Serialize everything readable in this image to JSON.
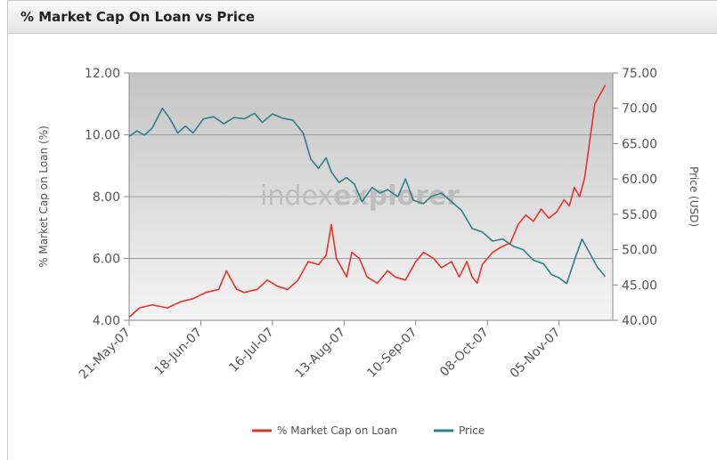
{
  "panel": {
    "title": "% Market Cap On Loan vs Price"
  },
  "watermark": {
    "text_light": "index",
    "text_bold": "explorer"
  },
  "colors": {
    "loan": "#e8322b",
    "price": "#2f7f86",
    "grid": "#9a9a9a",
    "axis": "#8a8a8a"
  },
  "chart_data": {
    "type": "line",
    "title": "% Market Cap On Loan vs Price",
    "ylabel_left": "% Market Cap on Loan (%)",
    "ylabel_right": "Price (USD)",
    "ylim_left": [
      4,
      12
    ],
    "ylim_right": [
      40,
      75
    ],
    "xlim": [
      "2007-05-21",
      "2007-11-26"
    ],
    "yticks_left": [
      "4.00",
      "6.00",
      "8.00",
      "10.00",
      "12.00"
    ],
    "yticks_right": [
      "40.00",
      "45.00",
      "50.00",
      "55.00",
      "60.00",
      "65.00",
      "70.00",
      "75.00"
    ],
    "x_ticks": [
      {
        "date": "2007-05-21",
        "label": "21-May-07"
      },
      {
        "date": "2007-06-18",
        "label": "18-Jun-07"
      },
      {
        "date": "2007-07-16",
        "label": "16-Jul-07"
      },
      {
        "date": "2007-08-13",
        "label": "13-Aug-07"
      },
      {
        "date": "2007-09-10",
        "label": "10-Sep-07"
      },
      {
        "date": "2007-10-08",
        "label": "08-Oct-07"
      },
      {
        "date": "2007-11-05",
        "label": "05-Nov-07"
      }
    ],
    "legend_position": "bottom",
    "grid": true,
    "series": [
      {
        "name": "% Market Cap on Loan",
        "axis": "left",
        "points": [
          [
            "2007-05-21",
            4.1
          ],
          [
            "2007-05-25",
            4.4
          ],
          [
            "2007-05-30",
            4.5
          ],
          [
            "2007-06-05",
            4.4
          ],
          [
            "2007-06-10",
            4.6
          ],
          [
            "2007-06-15",
            4.7
          ],
          [
            "2007-06-20",
            4.9
          ],
          [
            "2007-06-25",
            5.0
          ],
          [
            "2007-06-28",
            5.6
          ],
          [
            "2007-07-02",
            5.0
          ],
          [
            "2007-07-05",
            4.9
          ],
          [
            "2007-07-10",
            5.0
          ],
          [
            "2007-07-14",
            5.3
          ],
          [
            "2007-07-18",
            5.1
          ],
          [
            "2007-07-22",
            5.0
          ],
          [
            "2007-07-26",
            5.3
          ],
          [
            "2007-07-30",
            5.9
          ],
          [
            "2007-08-03",
            5.8
          ],
          [
            "2007-08-06",
            6.1
          ],
          [
            "2007-08-08",
            7.1
          ],
          [
            "2007-08-10",
            6.0
          ],
          [
            "2007-08-12",
            5.7
          ],
          [
            "2007-08-14",
            5.4
          ],
          [
            "2007-08-16",
            6.2
          ],
          [
            "2007-08-19",
            6.0
          ],
          [
            "2007-08-22",
            5.4
          ],
          [
            "2007-08-26",
            5.2
          ],
          [
            "2007-08-30",
            5.6
          ],
          [
            "2007-09-02",
            5.4
          ],
          [
            "2007-09-06",
            5.3
          ],
          [
            "2007-09-10",
            5.9
          ],
          [
            "2007-09-13",
            6.2
          ],
          [
            "2007-09-17",
            6.0
          ],
          [
            "2007-09-20",
            5.7
          ],
          [
            "2007-09-24",
            5.9
          ],
          [
            "2007-09-27",
            5.4
          ],
          [
            "2007-09-30",
            5.9
          ],
          [
            "2007-10-02",
            5.4
          ],
          [
            "2007-10-04",
            5.2
          ],
          [
            "2007-10-06",
            5.8
          ],
          [
            "2007-10-10",
            6.2
          ],
          [
            "2007-10-14",
            6.4
          ],
          [
            "2007-10-17",
            6.5
          ],
          [
            "2007-10-20",
            7.1
          ],
          [
            "2007-10-23",
            7.4
          ],
          [
            "2007-10-26",
            7.2
          ],
          [
            "2007-10-29",
            7.6
          ],
          [
            "2007-11-01",
            7.3
          ],
          [
            "2007-11-04",
            7.5
          ],
          [
            "2007-11-07",
            7.9
          ],
          [
            "2007-11-09",
            7.7
          ],
          [
            "2007-11-11",
            8.3
          ],
          [
            "2007-11-13",
            8.0
          ],
          [
            "2007-11-15",
            8.6
          ],
          [
            "2007-11-17",
            9.8
          ],
          [
            "2007-11-19",
            11.0
          ],
          [
            "2007-11-23",
            11.6
          ]
        ]
      },
      {
        "name": "Price",
        "axis": "right",
        "points": [
          [
            "2007-05-21",
            66.0
          ],
          [
            "2007-05-24",
            66.8
          ],
          [
            "2007-05-27",
            66.2
          ],
          [
            "2007-05-30",
            67.2
          ],
          [
            "2007-06-03",
            70.0
          ],
          [
            "2007-06-06",
            68.5
          ],
          [
            "2007-06-09",
            66.5
          ],
          [
            "2007-06-12",
            67.5
          ],
          [
            "2007-06-15",
            66.5
          ],
          [
            "2007-06-19",
            68.5
          ],
          [
            "2007-06-23",
            68.8
          ],
          [
            "2007-06-27",
            67.8
          ],
          [
            "2007-07-01",
            68.7
          ],
          [
            "2007-07-05",
            68.5
          ],
          [
            "2007-07-09",
            69.3
          ],
          [
            "2007-07-12",
            68.0
          ],
          [
            "2007-07-16",
            69.2
          ],
          [
            "2007-07-20",
            68.6
          ],
          [
            "2007-07-24",
            68.3
          ],
          [
            "2007-07-28",
            66.5
          ],
          [
            "2007-07-31",
            62.8
          ],
          [
            "2007-08-03",
            61.5
          ],
          [
            "2007-08-06",
            63.0
          ],
          [
            "2007-08-08",
            61.0
          ],
          [
            "2007-08-11",
            59.5
          ],
          [
            "2007-08-14",
            60.2
          ],
          [
            "2007-08-17",
            59.3
          ],
          [
            "2007-08-20",
            56.8
          ],
          [
            "2007-08-24",
            58.8
          ],
          [
            "2007-08-27",
            58.0
          ],
          [
            "2007-08-30",
            58.5
          ],
          [
            "2007-09-03",
            57.5
          ],
          [
            "2007-09-06",
            60.0
          ],
          [
            "2007-09-09",
            57.0
          ],
          [
            "2007-09-13",
            56.5
          ],
          [
            "2007-09-16",
            57.5
          ],
          [
            "2007-09-20",
            58.0
          ],
          [
            "2007-09-24",
            56.8
          ],
          [
            "2007-09-28",
            55.5
          ],
          [
            "2007-10-02",
            53.0
          ],
          [
            "2007-10-06",
            52.5
          ],
          [
            "2007-10-10",
            51.2
          ],
          [
            "2007-10-14",
            51.5
          ],
          [
            "2007-10-18",
            50.5
          ],
          [
            "2007-10-22",
            50.0
          ],
          [
            "2007-10-26",
            48.5
          ],
          [
            "2007-10-30",
            48.0
          ],
          [
            "2007-11-02",
            46.5
          ],
          [
            "2007-11-05",
            46.0
          ],
          [
            "2007-11-08",
            45.2
          ],
          [
            "2007-11-11",
            48.5
          ],
          [
            "2007-11-14",
            51.5
          ],
          [
            "2007-11-17",
            49.5
          ],
          [
            "2007-11-20",
            47.5
          ],
          [
            "2007-11-23",
            46.2
          ]
        ]
      }
    ]
  }
}
